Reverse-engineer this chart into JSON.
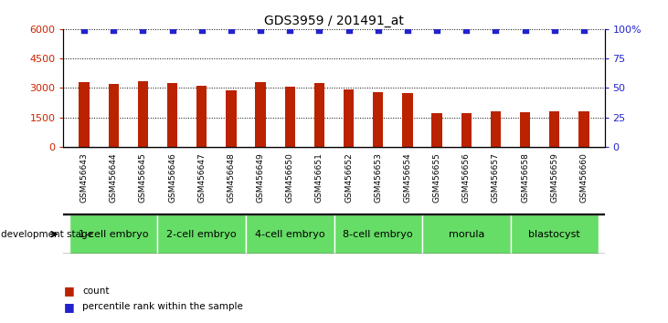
{
  "title": "GDS3959 / 201491_at",
  "samples": [
    "GSM456643",
    "GSM456644",
    "GSM456645",
    "GSM456646",
    "GSM456647",
    "GSM456648",
    "GSM456649",
    "GSM456650",
    "GSM456651",
    "GSM456652",
    "GSM456653",
    "GSM456654",
    "GSM456655",
    "GSM456656",
    "GSM456657",
    "GSM456658",
    "GSM456659",
    "GSM456660"
  ],
  "counts": [
    3300,
    3200,
    3350,
    3250,
    3100,
    2900,
    3300,
    3050,
    3250,
    2950,
    2800,
    2750,
    1700,
    1700,
    1800,
    1750,
    1800,
    1800
  ],
  "percentile_ranks": [
    99,
    99,
    99,
    99,
    99,
    99,
    99,
    99,
    99,
    99,
    99,
    99,
    99,
    99,
    99,
    99,
    99,
    99
  ],
  "ylim_left": [
    0,
    6000
  ],
  "ylim_right": [
    0,
    100
  ],
  "yticks_left": [
    0,
    1500,
    3000,
    4500,
    6000
  ],
  "ytick_labels_left": [
    "0",
    "1500",
    "3000",
    "4500",
    "6000"
  ],
  "yticks_right": [
    0,
    25,
    50,
    75,
    100
  ],
  "ytick_labels_right": [
    "0",
    "25",
    "50",
    "75",
    "100%"
  ],
  "bar_color": "#bb2200",
  "dot_color": "#2222cc",
  "stages": [
    {
      "label": "1-cell embryo",
      "start": 0,
      "end": 3
    },
    {
      "label": "2-cell embryo",
      "start": 3,
      "end": 6
    },
    {
      "label": "4-cell embryo",
      "start": 6,
      "end": 9
    },
    {
      "label": "8-cell embryo",
      "start": 9,
      "end": 12
    },
    {
      "label": "morula",
      "start": 12,
      "end": 15
    },
    {
      "label": "blastocyst",
      "start": 15,
      "end": 18
    }
  ],
  "stage_color": "#66dd66",
  "stage_header": "development stage",
  "xtick_bg": "#cccccc",
  "legend_count_label": "count",
  "legend_pct_label": "percentile rank within the sample",
  "bg_color": "#ffffff",
  "grid_color": "#000000",
  "tick_label_color_left": "#cc2200",
  "tick_label_color_right": "#2222cc"
}
